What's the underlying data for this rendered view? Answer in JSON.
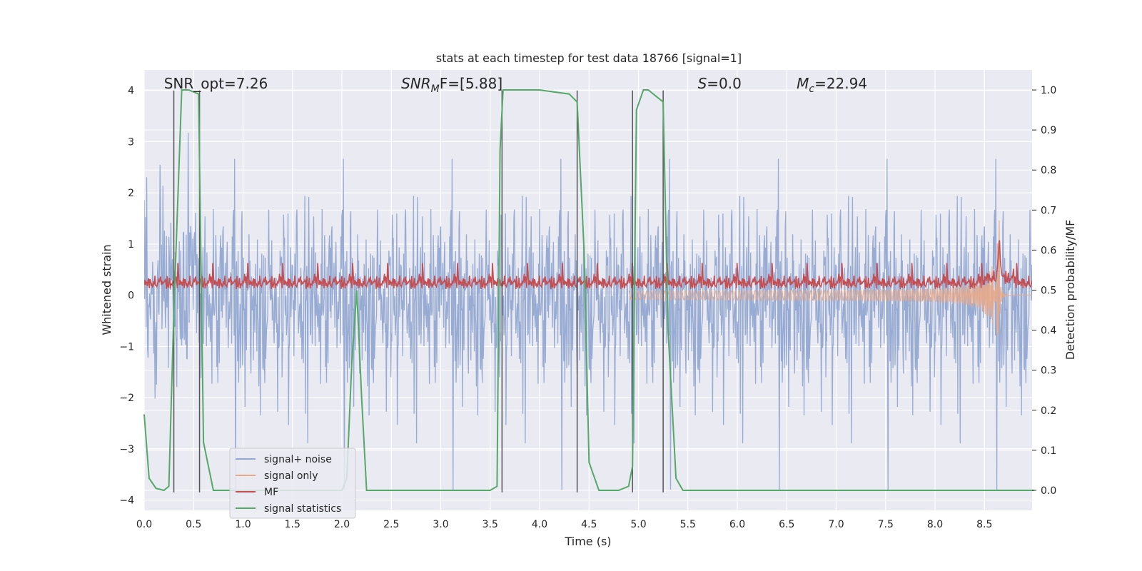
{
  "chart_data": {
    "type": "line",
    "title": "stats at each timestep for test data 18766 [signal=1]",
    "xlabel": "Time (s)",
    "ylabel": "Whitened strain",
    "ylabel_right": "Detection probability/MF",
    "xlim": [
      0,
      9.0
    ],
    "ylim": [
      -4.2,
      4.4
    ],
    "ylim_right": [
      -0.05,
      1.05
    ],
    "x_ticks": [
      "0.0",
      "0.5",
      "1.0",
      "1.5",
      "2.0",
      "2.5",
      "3.0",
      "3.5",
      "4.0",
      "4.5",
      "5.0",
      "5.5",
      "6.0",
      "6.5",
      "7.0",
      "7.5",
      "8.0",
      "8.5"
    ],
    "x_tick_values": [
      0,
      0.5,
      1,
      1.5,
      2,
      2.5,
      3,
      3.5,
      4,
      4.5,
      5,
      5.5,
      6,
      6.5,
      7,
      7.5,
      8,
      8.5
    ],
    "y_ticks": [
      "4",
      "3",
      "2",
      "1",
      "0",
      "−1",
      "−2",
      "−3",
      "−4"
    ],
    "y_tick_values": [
      4,
      3,
      2,
      1,
      0,
      -1,
      -2,
      -3,
      -4
    ],
    "y_ticks_right": [
      "1.0",
      "0.9",
      "0.8",
      "0.7",
      "0.6",
      "0.5",
      "0.4",
      "0.3",
      "0.2",
      "0.1",
      "0.0"
    ],
    "y_tick_values_right": [
      1.0,
      0.9,
      0.8,
      0.7,
      0.6,
      0.5,
      0.4,
      0.3,
      0.2,
      0.1,
      0.0
    ],
    "grid": true,
    "legend_placement": "lower-left",
    "annotations": [
      {
        "text": "SNR_opt=7.26",
        "x": 0.2
      },
      {
        "text_main": "SNR",
        "text_sub": "M",
        "text_rest": "F=[5.88]",
        "x": 2.6
      },
      {
        "text_main": "S",
        "text_sub": "",
        "text_rest": "=0.0",
        "x": 5.6
      },
      {
        "text_main": "M",
        "text_sub": "c",
        "text_rest": "=22.94",
        "x": 6.6
      }
    ],
    "vertical_lines": [
      0.3,
      0.56,
      3.62,
      4.38,
      4.94,
      5.25
    ],
    "series": [
      {
        "name": "signal+ noise",
        "color": "#92a8d1",
        "kind": "noise",
        "amplitude": 1.0,
        "extremes_high": 4.0,
        "extremes_low": -3.8
      },
      {
        "name": "signal only",
        "color": "#e8a98a",
        "kind": "chirp",
        "merger_time": 8.65,
        "peak": 1.6
      },
      {
        "name": "MF",
        "color": "#c44e52",
        "kind": "mf",
        "baseline": 0.22,
        "peak_time": 8.65,
        "peak": 0.95
      },
      {
        "name": "signal statistics",
        "color": "#55a868",
        "kind": "prob",
        "x": [
          0.0,
          0.05,
          0.12,
          0.2,
          0.25,
          0.3,
          0.38,
          0.45,
          0.55,
          0.6,
          0.7,
          0.8,
          1.0,
          1.5,
          2.0,
          2.05,
          2.1,
          2.15,
          2.2,
          2.25,
          2.3,
          2.4,
          3.0,
          3.5,
          3.57,
          3.6,
          3.63,
          3.7,
          3.8,
          4.0,
          4.3,
          4.38,
          4.45,
          4.5,
          4.6,
          4.7,
          4.8,
          4.9,
          4.94,
          4.98,
          5.05,
          5.1,
          5.2,
          5.25,
          5.3,
          5.38,
          5.45,
          5.6,
          6.0,
          7.0,
          8.0,
          8.5,
          9.0
        ],
        "y": [
          0.19,
          0.03,
          0.005,
          0.0,
          0.01,
          0.45,
          1.0,
          1.0,
          0.99,
          0.12,
          0.0,
          0.0,
          0.0,
          0.0,
          0.0,
          0.03,
          0.32,
          0.5,
          0.23,
          0.0,
          0.0,
          0.0,
          0.0,
          0.0,
          0.01,
          0.85,
          1.0,
          1.0,
          1.0,
          1.0,
          0.99,
          0.97,
          0.6,
          0.07,
          0.0,
          0.0,
          0.0,
          0.01,
          0.06,
          0.95,
          1.0,
          1.0,
          0.98,
          0.97,
          0.4,
          0.03,
          0.0,
          0.0,
          0.0,
          0.0,
          0.0,
          0.0,
          0.0
        ]
      }
    ]
  }
}
